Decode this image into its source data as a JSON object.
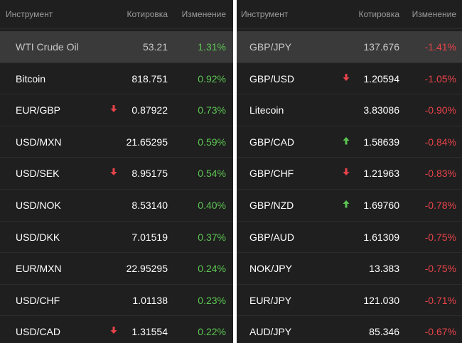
{
  "colors": {
    "positive": "#5cc552",
    "negative": "#e8434a",
    "panel_bg": "#1f1f1f",
    "highlight_bg": "#3a3a3a"
  },
  "left": {
    "headers": {
      "instrument": "Инструмент",
      "quote": "Котировка",
      "change": "Изменение"
    },
    "rows": [
      {
        "name": "WTI Crude Oil",
        "quote": "53.21",
        "change": "1.31%",
        "arrow": "none",
        "highlight": true
      },
      {
        "name": "Bitcoin",
        "quote": "818.751",
        "change": "0.92%",
        "arrow": "none"
      },
      {
        "name": "EUR/GBP",
        "quote": "0.87922",
        "change": "0.73%",
        "arrow": "down"
      },
      {
        "name": "USD/MXN",
        "quote": "21.65295",
        "change": "0.59%",
        "arrow": "none"
      },
      {
        "name": "USD/SEK",
        "quote": "8.95175",
        "change": "0.54%",
        "arrow": "down"
      },
      {
        "name": "USD/NOK",
        "quote": "8.53140",
        "change": "0.40%",
        "arrow": "none"
      },
      {
        "name": "USD/DKK",
        "quote": "7.01519",
        "change": "0.37%",
        "arrow": "none"
      },
      {
        "name": "EUR/MXN",
        "quote": "22.95295",
        "change": "0.24%",
        "arrow": "none"
      },
      {
        "name": "USD/CHF",
        "quote": "1.01138",
        "change": "0.23%",
        "arrow": "none"
      },
      {
        "name": "USD/CAD",
        "quote": "1.31554",
        "change": "0.22%",
        "arrow": "down"
      }
    ]
  },
  "right": {
    "headers": {
      "instrument": "Инструмент",
      "quote": "Котировка",
      "change": "Изменение"
    },
    "rows": [
      {
        "name": "GBP/JPY",
        "quote": "137.676",
        "change": "-1.41%",
        "arrow": "none",
        "highlight": true
      },
      {
        "name": "GBP/USD",
        "quote": "1.20594",
        "change": "-1.05%",
        "arrow": "down"
      },
      {
        "name": "Litecoin",
        "quote": "3.83086",
        "change": "-0.90%",
        "arrow": "none"
      },
      {
        "name": "GBP/CAD",
        "quote": "1.58639",
        "change": "-0.84%",
        "arrow": "up"
      },
      {
        "name": "GBP/CHF",
        "quote": "1.21963",
        "change": "-0.83%",
        "arrow": "down"
      },
      {
        "name": "GBP/NZD",
        "quote": "1.69760",
        "change": "-0.78%",
        "arrow": "up"
      },
      {
        "name": "GBP/AUD",
        "quote": "1.61309",
        "change": "-0.75%",
        "arrow": "none"
      },
      {
        "name": "NOK/JPY",
        "quote": "13.383",
        "change": "-0.75%",
        "arrow": "none"
      },
      {
        "name": "EUR/JPY",
        "quote": "121.030",
        "change": "-0.71%",
        "arrow": "none"
      },
      {
        "name": "AUD/JPY",
        "quote": "85.346",
        "change": "-0.67%",
        "arrow": "none"
      }
    ]
  }
}
